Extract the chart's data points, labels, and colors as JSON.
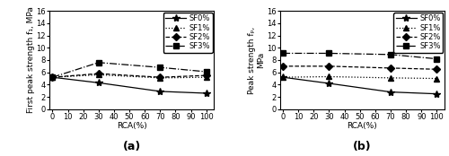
{
  "x": [
    0,
    30,
    70,
    100
  ],
  "plot_a": {
    "title": "(a)",
    "ylabel": "First peak strength f₁, MPa",
    "xlabel": "RCA(%)",
    "ylim": [
      0,
      16
    ],
    "yticks": [
      0,
      2,
      4,
      6,
      8,
      10,
      12,
      14,
      16
    ],
    "xticks": [
      0,
      10,
      20,
      30,
      40,
      50,
      60,
      70,
      80,
      90,
      100
    ],
    "series": {
      "SF0%": {
        "y": [
          5.2,
          4.3,
          2.9,
          2.6
        ],
        "linestyle": "-",
        "marker": "*"
      },
      "SF1%": {
        "y": [
          5.2,
          5.6,
          5.1,
          5.2
        ],
        "linestyle": ":",
        "marker": "^"
      },
      "SF2%": {
        "y": [
          5.2,
          5.8,
          5.2,
          5.5
        ],
        "linestyle": "--",
        "marker": "D"
      },
      "SF3%": {
        "y": [
          5.2,
          7.6,
          6.8,
          6.1
        ],
        "linestyle": "-.",
        "marker": "s"
      }
    }
  },
  "plot_b": {
    "title": "(b)",
    "ylabel": "Peak strength fₚ,\nMPa",
    "xlabel": "RCA(%)",
    "ylim": [
      0,
      16
    ],
    "yticks": [
      0,
      2,
      4,
      6,
      8,
      10,
      12,
      14,
      16
    ],
    "xticks": [
      0,
      10,
      20,
      30,
      40,
      50,
      60,
      70,
      80,
      90,
      100
    ],
    "series": {
      "SF0%": {
        "y": [
          5.2,
          4.2,
          2.8,
          2.5
        ],
        "linestyle": "-",
        "marker": "*"
      },
      "SF1%": {
        "y": [
          5.2,
          5.3,
          5.1,
          5.0
        ],
        "linestyle": ":",
        "marker": "^"
      },
      "SF2%": {
        "y": [
          7.0,
          7.0,
          6.7,
          6.5
        ],
        "linestyle": "--",
        "marker": "D"
      },
      "SF3%": {
        "y": [
          9.1,
          9.1,
          8.9,
          8.2
        ],
        "linestyle": "-.",
        "marker": "s"
      }
    }
  },
  "color": "black",
  "legend_fontsize": 6,
  "axis_fontsize": 6.5,
  "title_fontsize": 9,
  "tick_fontsize": 6
}
